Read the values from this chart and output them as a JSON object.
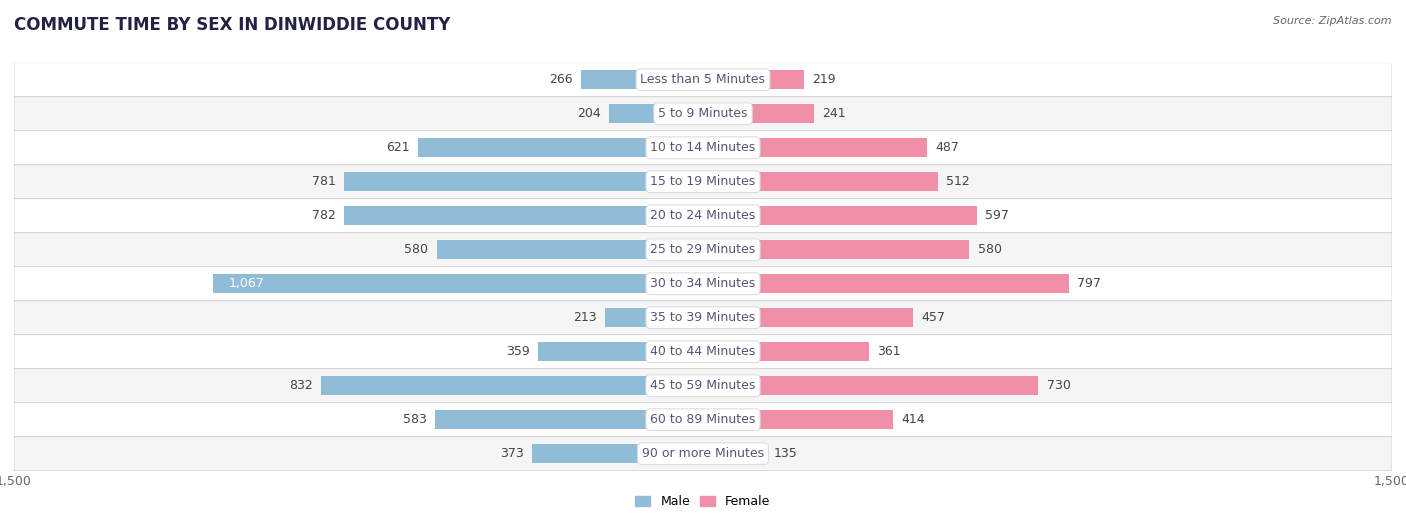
{
  "title": "COMMUTE TIME BY SEX IN DINWIDDIE COUNTY",
  "source": "Source: ZipAtlas.com",
  "categories": [
    "Less than 5 Minutes",
    "5 to 9 Minutes",
    "10 to 14 Minutes",
    "15 to 19 Minutes",
    "20 to 24 Minutes",
    "25 to 29 Minutes",
    "30 to 34 Minutes",
    "35 to 39 Minutes",
    "40 to 44 Minutes",
    "45 to 59 Minutes",
    "60 to 89 Minutes",
    "90 or more Minutes"
  ],
  "male_values": [
    266,
    204,
    621,
    781,
    782,
    580,
    1067,
    213,
    359,
    832,
    583,
    373
  ],
  "female_values": [
    219,
    241,
    487,
    512,
    597,
    580,
    797,
    457,
    361,
    730,
    414,
    135
  ],
  "male_color": "#91bcd8",
  "female_color": "#f090a8",
  "axis_limit": 1500,
  "background_color": "#ffffff",
  "row_color_odd": "#f5f5f5",
  "row_color_even": "#ffffff",
  "row_border_color": "#cccccc",
  "title_fontsize": 12,
  "label_fontsize": 9,
  "tick_fontsize": 9,
  "bar_height": 0.55,
  "value_color": "#444444",
  "value_color_inside": "#ffffff",
  "category_text_color": "#555577"
}
